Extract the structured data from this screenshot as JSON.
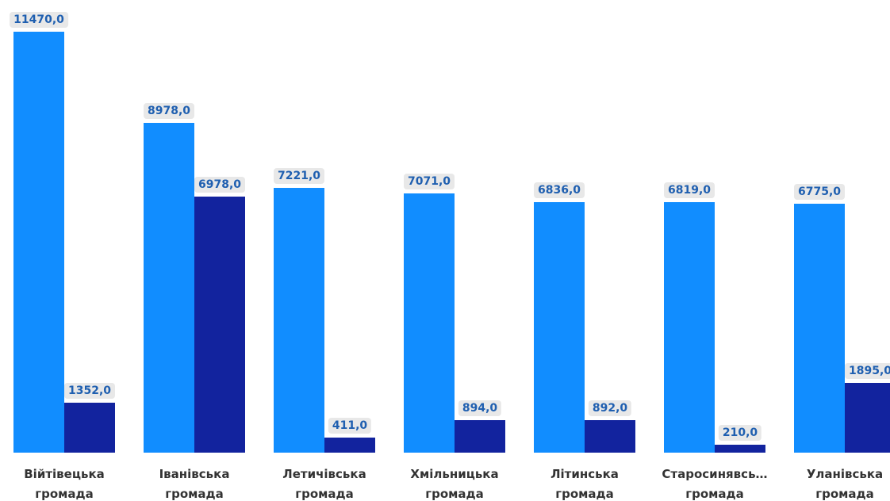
{
  "chart_data": {
    "type": "bar",
    "categories": [
      "Війтівецька\nгромада",
      "Іванівська\nгромада",
      "Летичівська\nгромада",
      "Хмільницька\nгромада",
      "Літинська\nгромада",
      "Старосинявсь…\nгромада",
      "Уланівська\nгромада"
    ],
    "series": [
      {
        "color": "#118dff",
        "values": [
          11470,
          8978,
          7221,
          7071,
          6836,
          6819,
          6775
        ],
        "value_labels": [
          "11470,0",
          "8978,0",
          "7221,0",
          "7071,0",
          "6836,0",
          "6819,0",
          "6775,0"
        ]
      },
      {
        "color": "#12239e",
        "values": [
          1352,
          6978,
          411,
          894,
          892,
          210,
          1895
        ],
        "value_labels": [
          "1352,0",
          "6978,0",
          "411,0",
          "894,0",
          "892,0",
          "210,0",
          "1895,0"
        ]
      }
    ],
    "ylim": [
      0,
      11470
    ]
  }
}
